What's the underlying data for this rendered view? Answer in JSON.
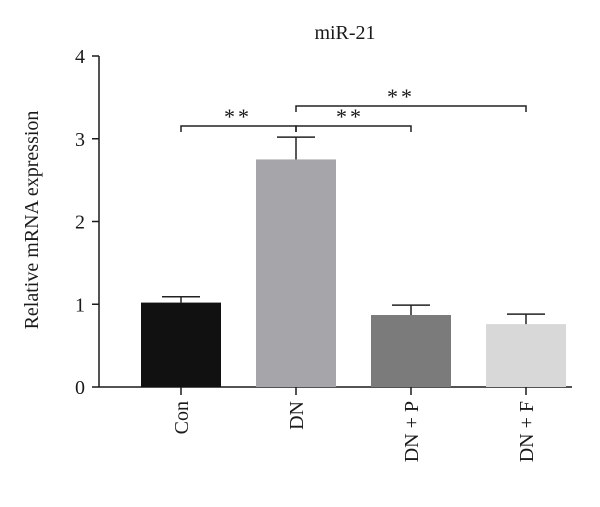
{
  "chart_data": {
    "type": "bar",
    "title": "miR-21",
    "xlabel": "",
    "ylabel": "Relative mRNA expression",
    "ylim": [
      0,
      4
    ],
    "yticks": [
      0,
      1,
      2,
      3,
      4
    ],
    "grid": false,
    "categories": [
      "Con",
      "DN",
      "DN + P",
      "DN + F"
    ],
    "values": [
      1.02,
      2.75,
      0.87,
      0.76
    ],
    "errors": [
      0.07,
      0.27,
      0.12,
      0.12
    ],
    "colors": [
      "#111111",
      "#a6a6aa",
      "#7b7b7b",
      "#d8d8d8"
    ],
    "significance": [
      {
        "from": "Con",
        "to": "DN",
        "label": "**"
      },
      {
        "from": "DN",
        "to": "DN + P",
        "label": "**"
      },
      {
        "from": "DN",
        "to": "DN + F",
        "label": "**"
      }
    ]
  }
}
